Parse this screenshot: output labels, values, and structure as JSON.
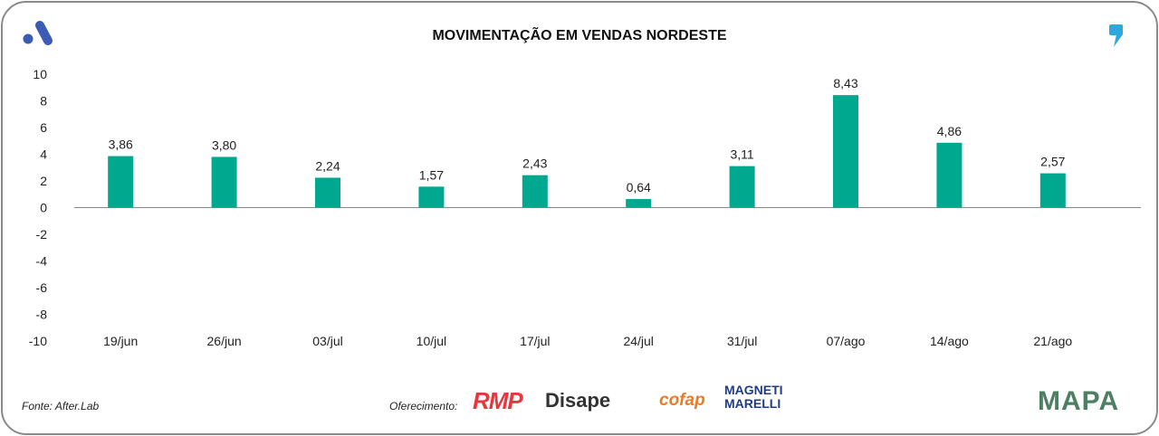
{
  "header": {
    "title": "MOVIMENTAÇÃO EM VENDAS NORDESTE"
  },
  "footer": {
    "source": "Fonte: After.Lab",
    "sponsor_label": "Oferecimento:",
    "sponsors": [
      "RMP",
      "Disape",
      "cofap",
      "MAGNETI MARELLI"
    ],
    "brand": "MAPA"
  },
  "chart_data": {
    "type": "bar",
    "title": "MOVIMENTAÇÃO EM VENDAS NORDESTE",
    "categories": [
      "19/jun",
      "26/jun",
      "03/jul",
      "10/jul",
      "17/jul",
      "24/jul",
      "31/jul",
      "07/ago",
      "14/ago",
      "21/ago"
    ],
    "values": [
      3.86,
      3.8,
      2.24,
      1.57,
      2.43,
      0.64,
      3.11,
      8.43,
      4.86,
      2.57
    ],
    "value_labels": [
      "3,86",
      "3,80",
      "2,24",
      "1,57",
      "2,43",
      "0,64",
      "3,11",
      "8,43",
      "4,86",
      "2,57"
    ],
    "yticks": [
      10,
      8,
      6,
      4,
      2,
      0,
      -2,
      -4,
      -6,
      -8,
      -10
    ],
    "ylim": [
      -10,
      10
    ],
    "xlabel": "",
    "ylabel": "",
    "grid": false,
    "bar_color": "#00a88f"
  }
}
